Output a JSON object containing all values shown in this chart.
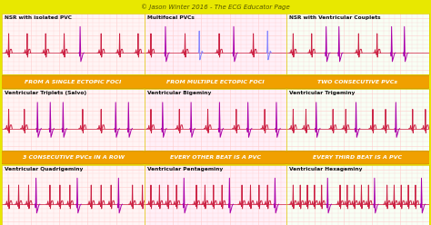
{
  "title": "© Jason Winter 2016 - The ECG Educator Page",
  "bg_outer": "#e8e800",
  "bg_panel": "#fff0f0",
  "banner_bg": "#f0a000",
  "panel_titles": [
    "NSR with isolated PVC",
    "Multifocal PVCs",
    "NSR with Ventricular Couplets",
    "Ventricular Triplets (Salvo)",
    "Ventricular Bigeminy",
    "Ventricular Trigeminy",
    "Ventricular Quadrigeminy",
    "Ventricular Pentageminy",
    "Ventricular Hexageminy"
  ],
  "banner_labels": [
    "FROM A SINGLE ECTOPIC FOCI",
    "FROM MULTIPLE ECTOPIC FOCI",
    "TWO CONSECUTIVE PVCs",
    "3 CONSECUTIVE PVCs IN A ROW",
    "EVERY OTHER BEAT IS A PVC",
    "EVERY THIRD BEAT IS A PVC"
  ],
  "title_fontsize": 5.0,
  "panel_title_fontsize": 4.2,
  "banner_fontsize": 4.5,
  "ecg_color_normal": "#cc2244",
  "ecg_color_pvc": "#aa00aa",
  "ecg_color_pvc2": "#8888ff",
  "grid_minor": "#ffcccc",
  "grid_major": "#ffaaaa",
  "border_yellow": "#ddcc00"
}
